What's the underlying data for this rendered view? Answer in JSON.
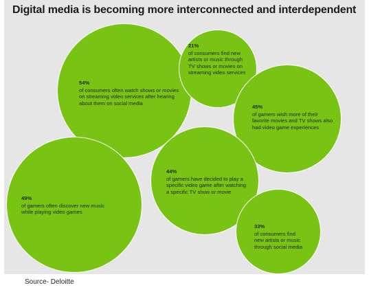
{
  "title": "Digital media is becoming more interconnected and interdependent",
  "bubbles": [
    {
      "id": "b54",
      "percent": "54%",
      "lines": [
        "of consumers often watch shows or movies",
        "on streaming video services after hearing",
        "about them on social media"
      ]
    },
    {
      "id": "b21",
      "percent": "21%",
      "lines": [
        "of consumers find new",
        "artists or music through",
        "TV shows or movies on",
        "streaming video services"
      ]
    },
    {
      "id": "b45",
      "percent": "45%",
      "lines": [
        "of gamers wish more of their",
        "favorite movies and TV shows also",
        "had video game experiences"
      ]
    },
    {
      "id": "b44",
      "percent": "44%",
      "lines": [
        "of gamers have decided to play a",
        "specific video game after watching",
        "a specific TV show or movie"
      ]
    },
    {
      "id": "b49",
      "percent": "49%",
      "lines": [
        "of gamers often discover new music",
        "while playing video games"
      ]
    },
    {
      "id": "b33",
      "percent": "33%",
      "lines": [
        "of consumers find",
        "new artists or music",
        "through social media"
      ]
    }
  ],
  "source": "Source- Deloitte",
  "colors": {
    "bubble": "#79c314",
    "background": "#e6e6e6",
    "text": "#1a2a10"
  }
}
